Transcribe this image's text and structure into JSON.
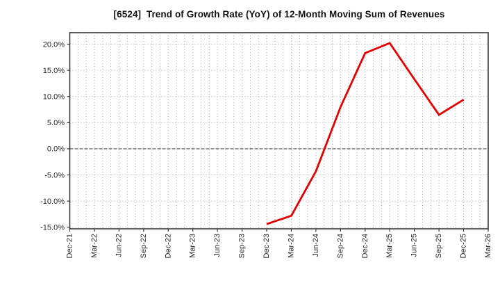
{
  "chart_data": {
    "type": "line",
    "title": "[6524]  Trend of Growth Rate (YoY) of 12-Month Moving Sum of Revenues",
    "x_axis": {
      "tick_labels": [
        "Dec-21",
        "Mar-22",
        "Jun-22",
        "Sep-22",
        "Dec-22",
        "Mar-23",
        "Jun-23",
        "Sep-23",
        "Dec-23",
        "Mar-24",
        "Jun-24",
        "Sep-24",
        "Dec-24",
        "Mar-25",
        "Jun-25",
        "Sep-25",
        "Dec-25",
        "Mar-26"
      ],
      "minor_grid": "monthly-dotted",
      "tick_interval_months": 3
    },
    "y_axis": {
      "tick_labels": [
        "20.0%",
        "15.0%",
        "10.0%",
        "5.0%",
        "0.0%",
        "-5.0%",
        "-10.0%",
        "-15.0%"
      ],
      "tick_values": [
        20,
        15,
        10,
        5,
        0,
        -5,
        -10,
        -15
      ],
      "ylim": [
        -15.3,
        22.2
      ],
      "unit": "%",
      "zero_line": "solid"
    },
    "series": [
      {
        "name": "Growth Rate (YoY) of 12-Month Moving Sum of Revenues",
        "color": "#e60000",
        "points": [
          {
            "x": "Dec-23",
            "value": -14.4
          },
          {
            "x": "Mar-24",
            "value": -12.8
          },
          {
            "x": "Jun-24",
            "value": -4.3
          },
          {
            "x": "Sep-24",
            "value": 8.0
          },
          {
            "x": "Dec-24",
            "value": 18.3
          },
          {
            "x": "Mar-25",
            "value": 20.2
          },
          {
            "x": "Jun-25",
            "value": 13.3
          },
          {
            "x": "Sep-25",
            "value": 6.5
          },
          {
            "x": "Dec-25",
            "value": 9.4
          }
        ]
      }
    ],
    "grid": {
      "horizontal": "dotted at 5% steps",
      "vertical": "dotted monthly",
      "shown": true
    },
    "legend": "none",
    "colors": {
      "line": "#e60000",
      "grid": "#a6a6a6",
      "zero_line": "#707070",
      "border": "#383838",
      "text": "#262626",
      "title_text": "#111111",
      "background": "#ffffff"
    }
  }
}
